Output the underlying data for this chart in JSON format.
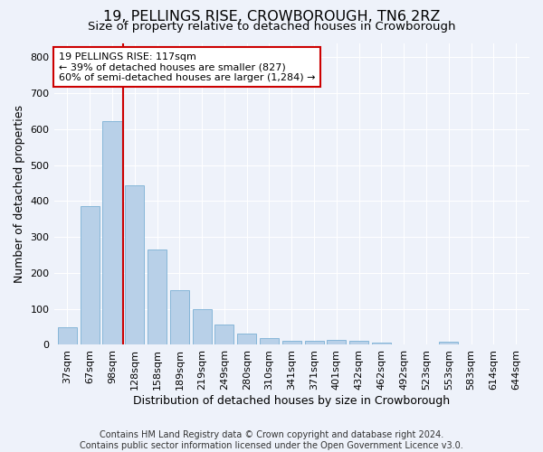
{
  "title": "19, PELLINGS RISE, CROWBOROUGH, TN6 2RZ",
  "subtitle": "Size of property relative to detached houses in Crowborough",
  "xlabel": "Distribution of detached houses by size in Crowborough",
  "ylabel": "Number of detached properties",
  "categories": [
    "37sqm",
    "67sqm",
    "98sqm",
    "128sqm",
    "158sqm",
    "189sqm",
    "219sqm",
    "249sqm",
    "280sqm",
    "310sqm",
    "341sqm",
    "371sqm",
    "401sqm",
    "432sqm",
    "462sqm",
    "492sqm",
    "523sqm",
    "553sqm",
    "583sqm",
    "614sqm",
    "644sqm"
  ],
  "values": [
    50,
    385,
    623,
    443,
    265,
    152,
    99,
    57,
    32,
    20,
    10,
    10,
    14,
    10,
    5,
    0,
    0,
    8,
    0,
    0,
    0
  ],
  "bar_color": "#b8d0e8",
  "bar_edge_color": "#7aafd4",
  "vline_x": 2.5,
  "vline_color": "#cc0000",
  "annotation_text": "19 PELLINGS RISE: 117sqm\n← 39% of detached houses are smaller (827)\n60% of semi-detached houses are larger (1,284) →",
  "annotation_box_color": "#ffffff",
  "annotation_box_edge": "#cc0000",
  "ylim": [
    0,
    840
  ],
  "yticks": [
    0,
    100,
    200,
    300,
    400,
    500,
    600,
    700,
    800
  ],
  "footer": "Contains HM Land Registry data © Crown copyright and database right 2024.\nContains public sector information licensed under the Open Government Licence v3.0.",
  "bg_color": "#eef2fa",
  "title_fontsize": 11.5,
  "subtitle_fontsize": 9.5,
  "axis_label_fontsize": 9,
  "tick_fontsize": 8,
  "footer_fontsize": 7,
  "annotation_fontsize": 8
}
